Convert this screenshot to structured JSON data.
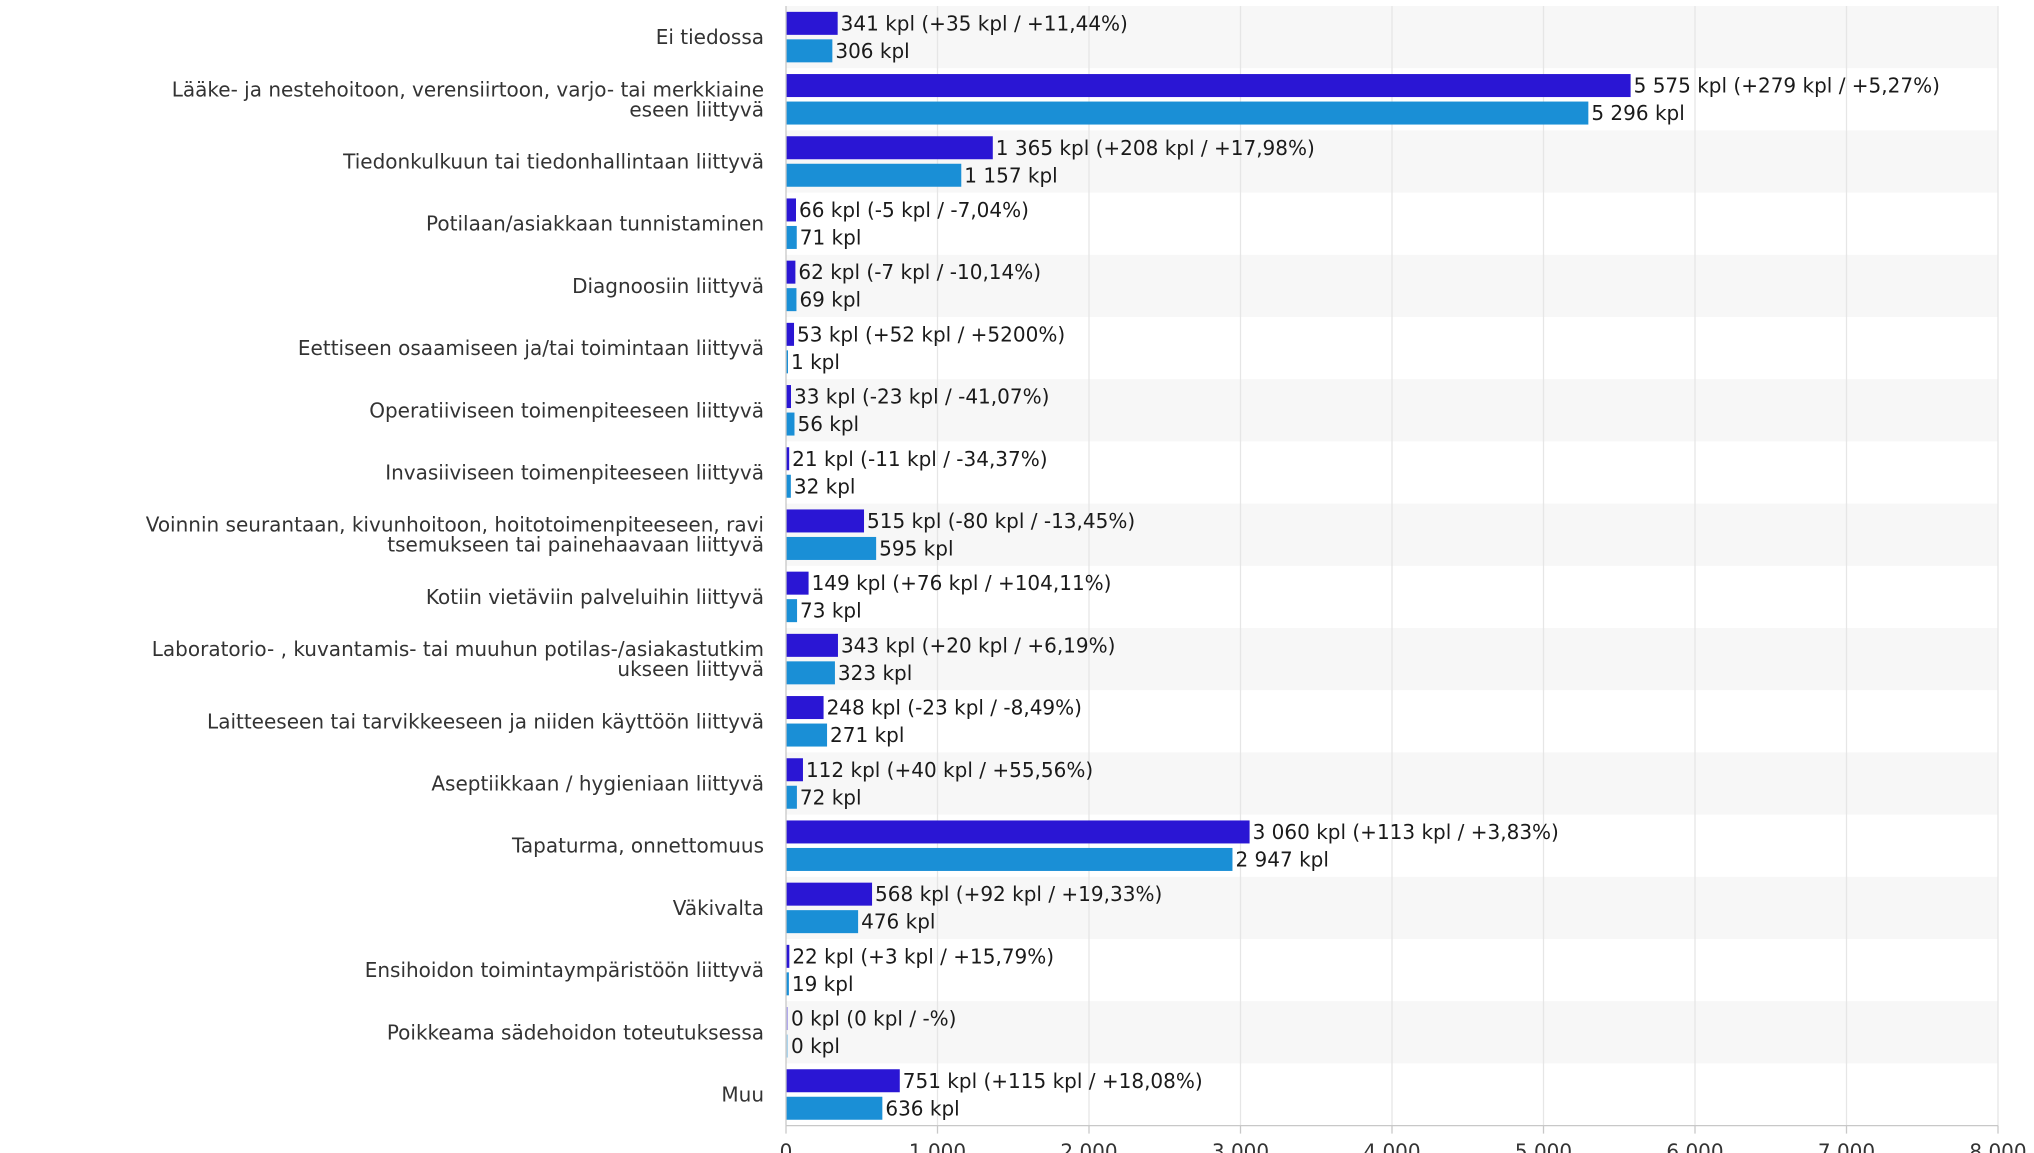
{
  "chart_data": {
    "type": "bar",
    "orientation": "horizontal",
    "grid": true,
    "xlim": [
      0,
      8000
    ],
    "x_ticks": [
      "0",
      "1 000",
      "2 000",
      "3 000",
      "4 000",
      "5 000",
      "6 000",
      "7 000",
      "8 000"
    ],
    "categories": [
      [
        "Ei tiedossa"
      ],
      [
        "Lääke- ja nestehoitoon, verensiirtoon, varjo- tai merkkiaine",
        "eseen liittyvä"
      ],
      [
        "Tiedonkulkuun tai tiedonhallintaan liittyvä"
      ],
      [
        "Potilaan/asiakkaan tunnistaminen"
      ],
      [
        "Diagnoosiin liittyvä"
      ],
      [
        "Eettiseen osaamiseen ja/tai toimintaan liittyvä"
      ],
      [
        "Operatiiviseen toimenpiteeseen liittyvä"
      ],
      [
        "Invasiiviseen toimenpiteeseen liittyvä"
      ],
      [
        "Voinnin seurantaan, kivunhoitoon, hoitotoimenpiteeseen, ravi",
        "tsemukseen tai painehaavaan liittyvä"
      ],
      [
        "Kotiin vietäviin palveluihin liittyvä"
      ],
      [
        "Laboratorio- , kuvantamis- tai muuhun potilas-/asiakastutkim",
        "ukseen liittyvä"
      ],
      [
        "Laitteeseen tai tarvikkeeseen ja niiden käyttöön liittyvä"
      ],
      [
        "Aseptiikkaan / hygieniaan liittyvä"
      ],
      [
        "Tapaturma, onnettomuus"
      ],
      [
        "Väkivalta"
      ],
      [
        "Ensihoidon toimintaympäristöön liittyvä"
      ],
      [
        "Poikkeama sädehoidon toteutuksessa"
      ],
      [
        "Muu"
      ]
    ],
    "series": [
      {
        "color": "#2a16d4",
        "values": [
          341,
          5575,
          1365,
          66,
          62,
          53,
          33,
          21,
          515,
          149,
          343,
          248,
          112,
          3060,
          568,
          22,
          0,
          751
        ],
        "labels": [
          "341 kpl (+35 kpl / +11,44%)",
          "5 575 kpl (+279 kpl / +5,27%)",
          "1 365 kpl (+208 kpl / +17,98%)",
          "66 kpl (-5 kpl / -7,04%)",
          "62 kpl (-7 kpl / -10,14%)",
          "53 kpl (+52 kpl / +5200%)",
          "33 kpl (-23 kpl / -41,07%)",
          "21 kpl (-11 kpl / -34,37%)",
          "515 kpl (-80 kpl / -13,45%)",
          "149 kpl (+76 kpl / +104,11%)",
          "343 kpl (+20 kpl / +6,19%)",
          "248 kpl (-23 kpl / -8,49%)",
          "112 kpl (+40 kpl / +55,56%)",
          "3 060 kpl (+113 kpl / +3,83%)",
          "568 kpl (+92 kpl / +19,33%)",
          "22 kpl (+3 kpl / +15,79%)",
          "0 kpl (0 kpl / -%)",
          "751 kpl (+115 kpl / +18,08%)"
        ]
      },
      {
        "color": "#1a8fd6",
        "values": [
          306,
          5296,
          1157,
          71,
          69,
          1,
          56,
          32,
          595,
          73,
          323,
          271,
          72,
          2947,
          476,
          19,
          0,
          636
        ],
        "labels": [
          "306 kpl",
          "5 296 kpl",
          "1 157 kpl",
          "71 kpl",
          "69 kpl",
          "1 kpl",
          "56 kpl",
          "32 kpl",
          "595 kpl",
          "73 kpl",
          "323 kpl",
          "271 kpl",
          "72 kpl",
          "2 947 kpl",
          "476 kpl",
          "19 kpl",
          "0 kpl",
          "636 kpl"
        ]
      }
    ]
  }
}
